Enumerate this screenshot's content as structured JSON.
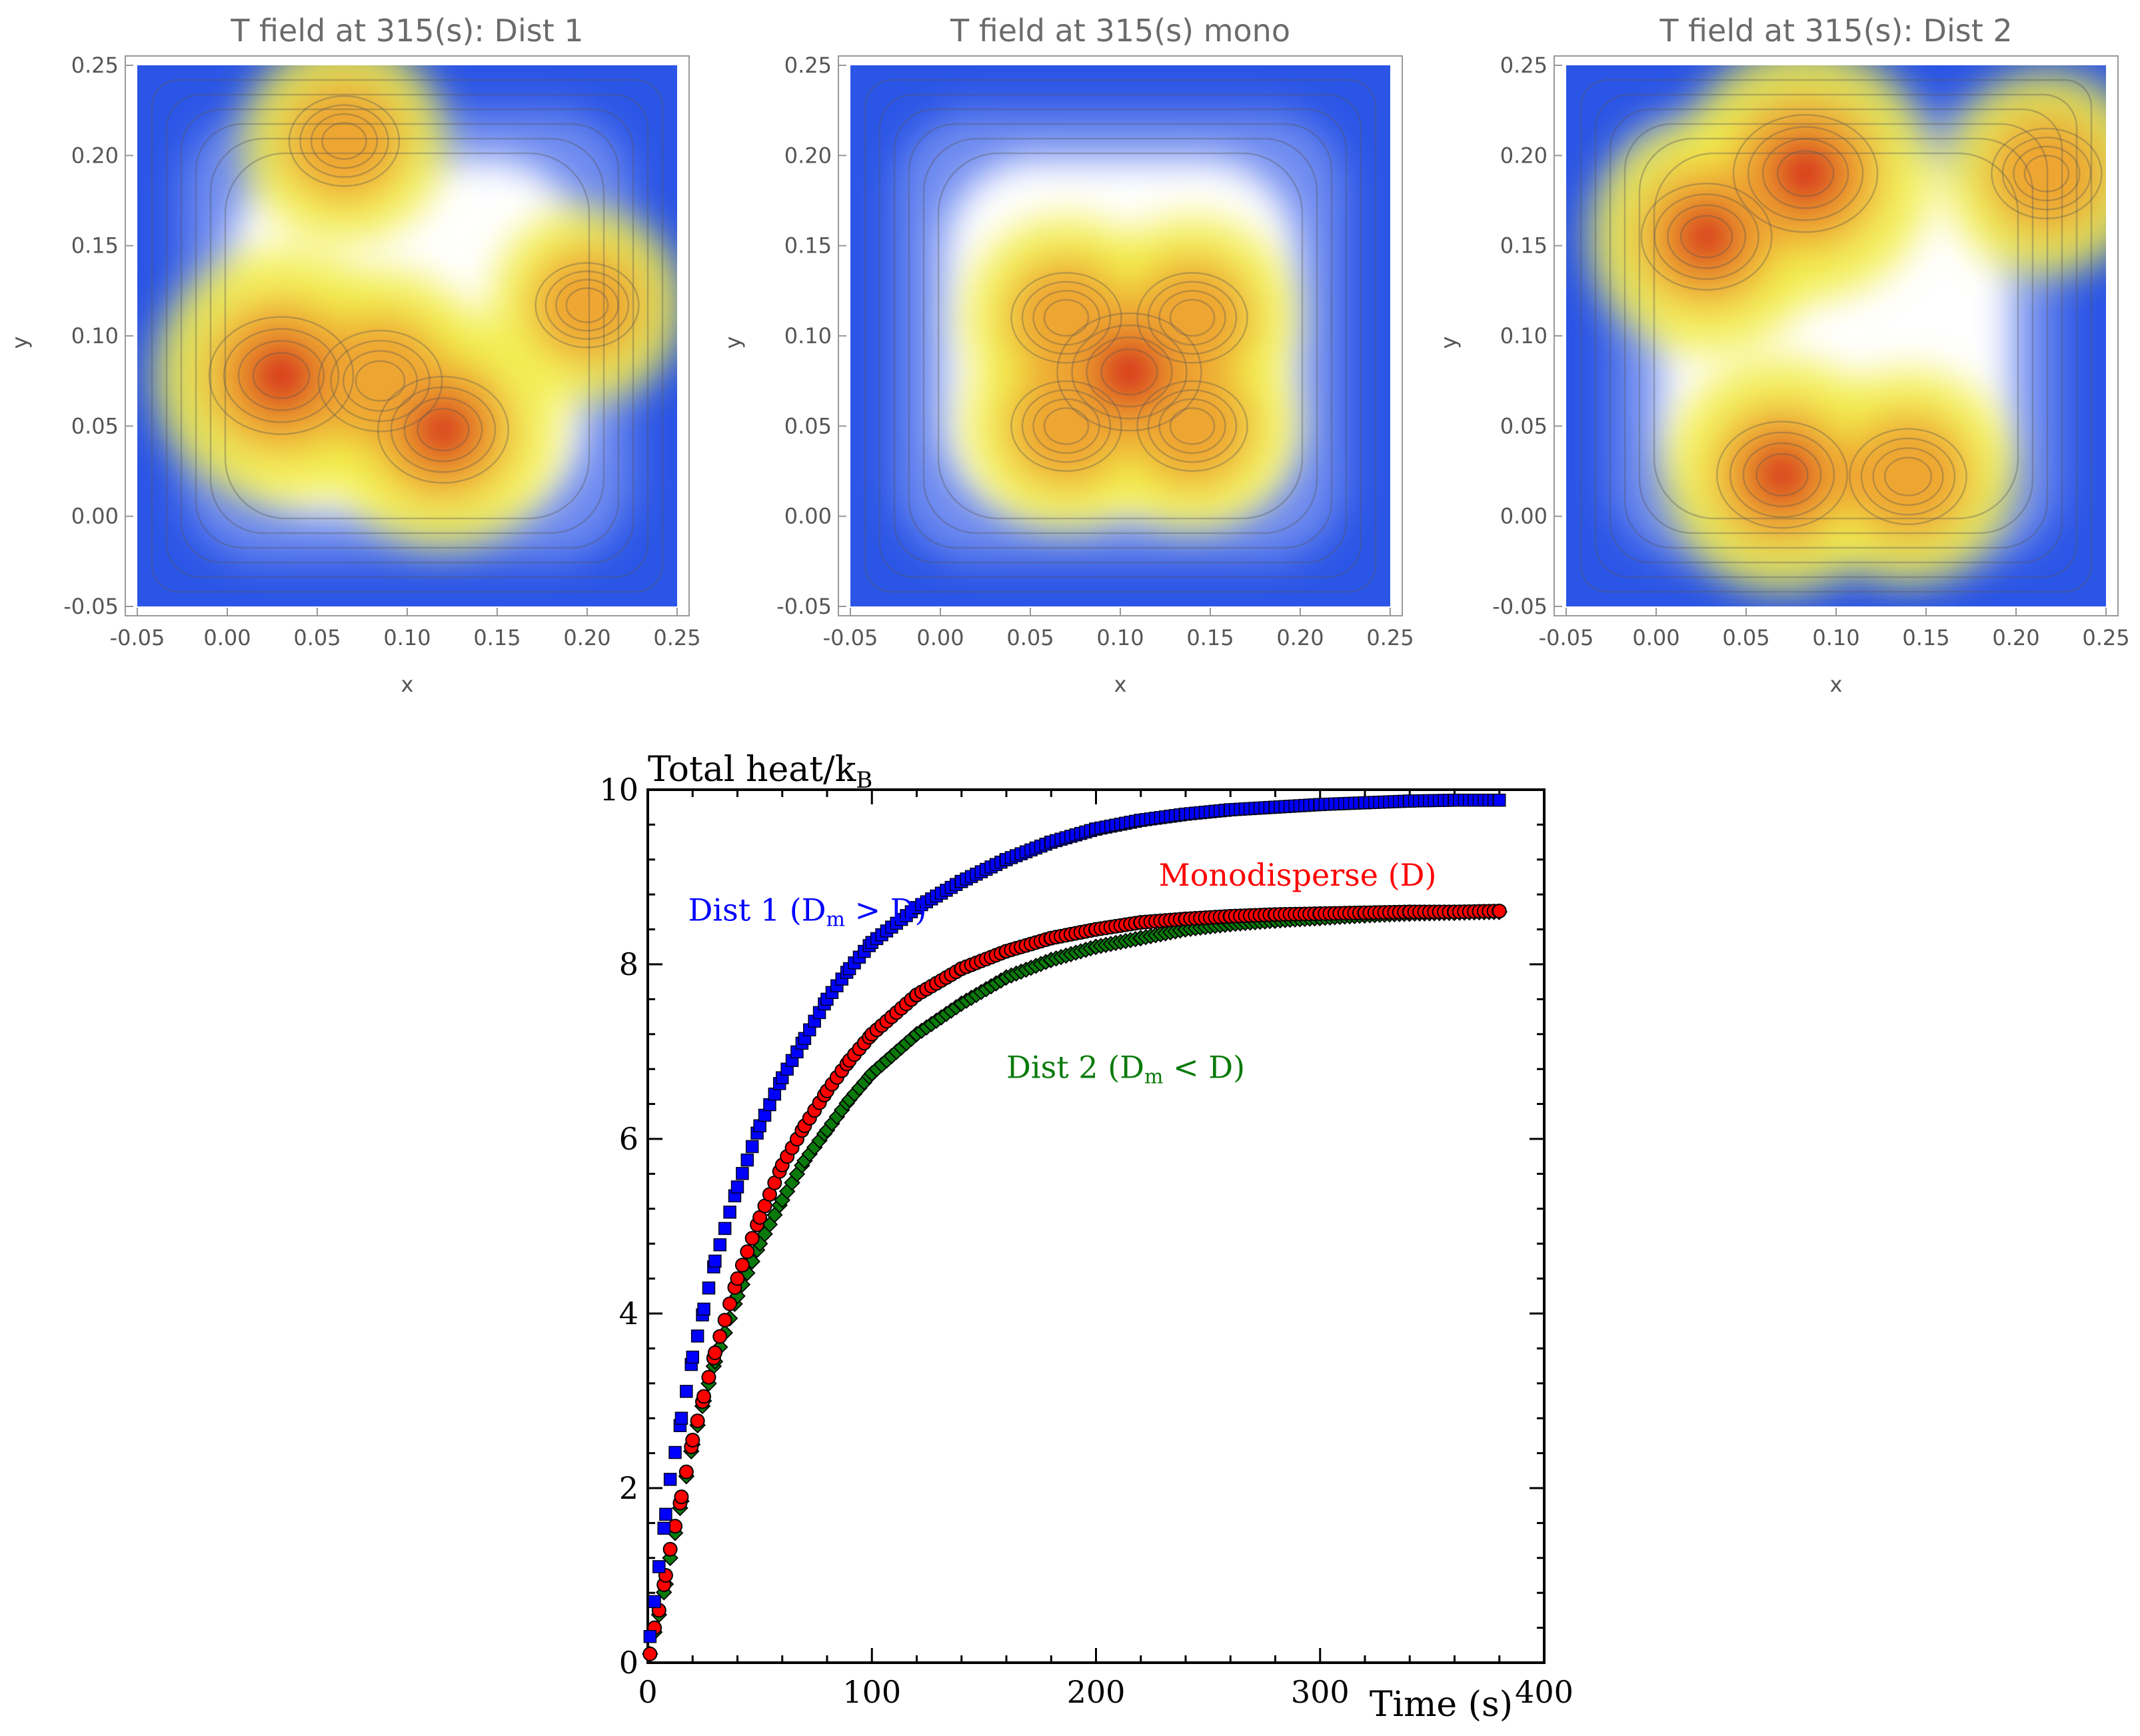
{
  "chart_data": [
    {
      "type": "heatmap",
      "title": "T field at 315(s): Dist 1",
      "xlabel": "x",
      "ylabel": "y",
      "xlim": [
        -0.05,
        0.25
      ],
      "ylim": [
        -0.05,
        0.25
      ],
      "xticks": [
        "-0.05",
        "0.00",
        "0.05",
        "0.10",
        "0.15",
        "0.20",
        "0.25"
      ],
      "yticks": [
        "-0.05",
        "0.00",
        "0.05",
        "0.10",
        "0.15",
        "0.20",
        "0.25"
      ],
      "hotspots": [
        {
          "x": 0.03,
          "y": 0.078,
          "level": 1.0
        },
        {
          "x": 0.085,
          "y": 0.075,
          "level": 0.85
        },
        {
          "x": 0.12,
          "y": 0.048,
          "level": 0.9
        },
        {
          "x": 0.065,
          "y": 0.208,
          "level": 0.75
        },
        {
          "x": 0.2,
          "y": 0.117,
          "level": 0.7
        }
      ],
      "colorscale": [
        "#2b55e6",
        "#ffffff",
        "#f2ee4a",
        "#eea632",
        "#d82a1e"
      ]
    },
    {
      "type": "heatmap",
      "title": "T field at 315(s) mono",
      "xlabel": "x",
      "ylabel": "y",
      "xlim": [
        -0.05,
        0.25
      ],
      "ylim": [
        -0.05,
        0.25
      ],
      "xticks": [
        "-0.05",
        "0.00",
        "0.05",
        "0.10",
        "0.15",
        "0.20",
        "0.25"
      ],
      "yticks": [
        "-0.05",
        "0.00",
        "0.05",
        "0.10",
        "0.15",
        "0.20",
        "0.25"
      ],
      "hotspots": [
        {
          "x": 0.105,
          "y": 0.08,
          "level": 1.0
        },
        {
          "x": 0.07,
          "y": 0.11,
          "level": 0.75
        },
        {
          "x": 0.14,
          "y": 0.11,
          "level": 0.75
        },
        {
          "x": 0.07,
          "y": 0.05,
          "level": 0.75
        },
        {
          "x": 0.14,
          "y": 0.05,
          "level": 0.75
        }
      ],
      "colorscale": [
        "#2b55e6",
        "#ffffff",
        "#f2ee4a",
        "#eea632",
        "#d82a1e"
      ]
    },
    {
      "type": "heatmap",
      "title": "T field at 315(s): Dist 2",
      "xlabel": "x",
      "ylabel": "y",
      "xlim": [
        -0.05,
        0.25
      ],
      "ylim": [
        -0.05,
        0.25
      ],
      "xticks": [
        "-0.05",
        "0.00",
        "0.05",
        "0.10",
        "0.15",
        "0.20",
        "0.25"
      ],
      "yticks": [
        "-0.05",
        "0.00",
        "0.05",
        "0.10",
        "0.15",
        "0.20",
        "0.25"
      ],
      "hotspots": [
        {
          "x": 0.083,
          "y": 0.19,
          "level": 1.0
        },
        {
          "x": 0.028,
          "y": 0.155,
          "level": 0.9
        },
        {
          "x": 0.07,
          "y": 0.023,
          "level": 0.9
        },
        {
          "x": 0.14,
          "y": 0.022,
          "level": 0.8
        },
        {
          "x": 0.217,
          "y": 0.19,
          "level": 0.75
        }
      ],
      "colorscale": [
        "#2b55e6",
        "#ffffff",
        "#f2ee4a",
        "#eea632",
        "#d82a1e"
      ]
    },
    {
      "type": "scatter",
      "title": "",
      "ylabel": "Total heat/k",
      "ylabel_sub": "B",
      "xlabel": "Time (s)",
      "xlim": [
        0,
        400
      ],
      "ylim": [
        0,
        10
      ],
      "xticks": [
        0,
        100,
        200,
        300,
        400
      ],
      "yticks": [
        0,
        2,
        4,
        6,
        8,
        10
      ],
      "grid": false,
      "x": [
        1,
        3,
        5,
        8,
        10,
        15,
        20,
        25,
        30,
        40,
        50,
        60,
        70,
        80,
        90,
        100,
        120,
        140,
        160,
        180,
        200,
        220,
        240,
        260,
        280,
        300,
        320,
        340,
        360,
        380
      ],
      "series": [
        {
          "marker": "square",
          "color": "#0000ff",
          "values": [
            0.3,
            0.7,
            1.1,
            1.7,
            2.1,
            2.8,
            3.5,
            4.05,
            4.6,
            5.45,
            6.15,
            6.7,
            7.15,
            7.6,
            7.95,
            8.25,
            8.65,
            8.95,
            9.2,
            9.4,
            9.55,
            9.65,
            9.72,
            9.77,
            9.8,
            9.83,
            9.85,
            9.87,
            9.88,
            9.88
          ]
        },
        {
          "marker": "circle",
          "color": "#ff0000",
          "values": [
            0.1,
            0.4,
            0.6,
            1.0,
            1.3,
            1.9,
            2.55,
            3.05,
            3.55,
            4.4,
            5.1,
            5.7,
            6.15,
            6.55,
            6.9,
            7.2,
            7.65,
            7.95,
            8.15,
            8.3,
            8.4,
            8.48,
            8.52,
            8.55,
            8.57,
            8.58,
            8.59,
            8.6,
            8.6,
            8.61
          ]
        },
        {
          "marker": "diamond",
          "color": "#0a7a0a",
          "values": [
            0.1,
            0.35,
            0.55,
            0.9,
            1.2,
            1.85,
            2.5,
            3.0,
            3.45,
            4.2,
            4.8,
            5.3,
            5.75,
            6.1,
            6.45,
            6.75,
            7.2,
            7.55,
            7.85,
            8.05,
            8.2,
            8.3,
            8.4,
            8.46,
            8.5,
            8.53,
            8.56,
            8.58,
            8.59,
            8.6
          ]
        }
      ],
      "annotations": [
        {
          "text": "Dist 1 (D",
          "sub": "m",
          "rest": " > D)",
          "color": "#0000ff",
          "x": 18,
          "y": 8.5
        },
        {
          "text": "Monodisperse (D)",
          "sub": "",
          "rest": "",
          "color": "#ff0000",
          "x": 228,
          "y": 8.9
        },
        {
          "text": "Dist 2 (D",
          "sub": "m",
          "rest": " < D)",
          "color": "#0a7a0a",
          "x": 160,
          "y": 6.7
        }
      ]
    }
  ]
}
